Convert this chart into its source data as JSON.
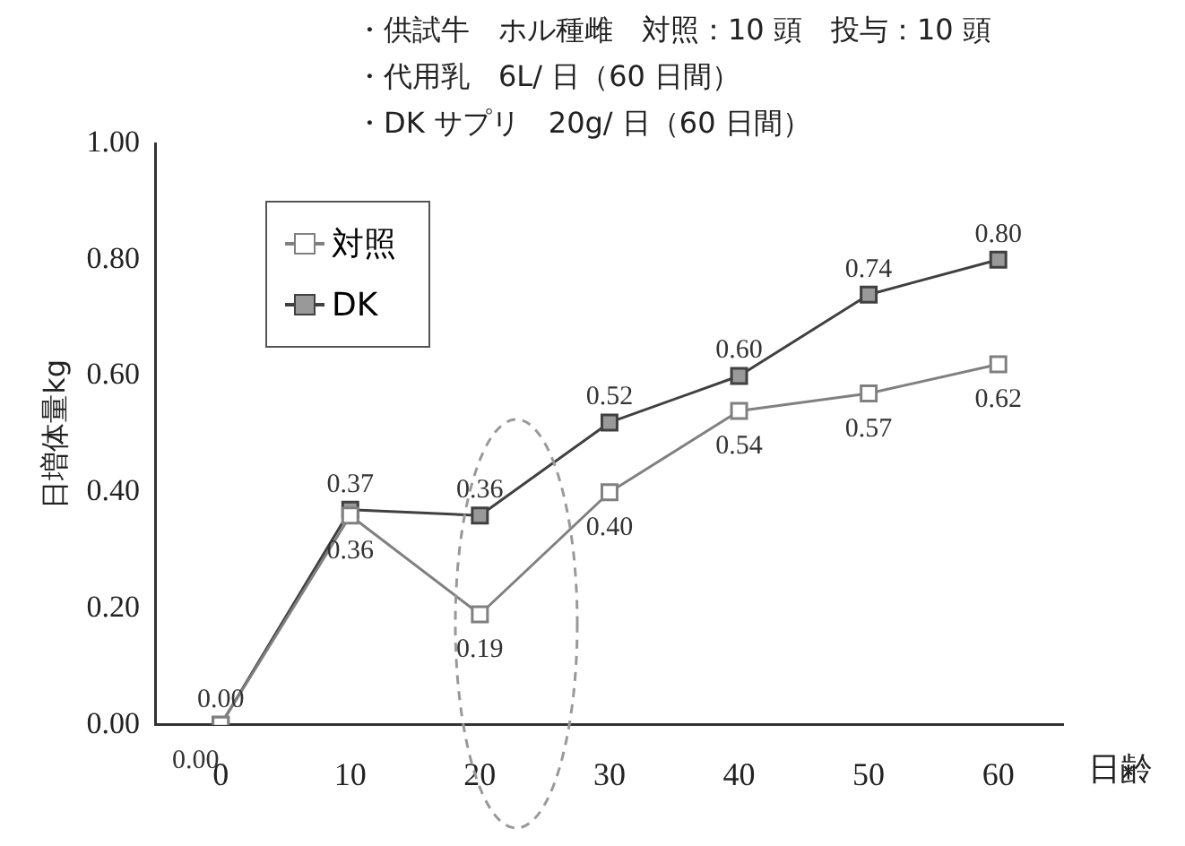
{
  "chart_data": {
    "type": "line",
    "annotations": [
      "・供試牛　ホル種雌　対照：10 頭　投与：10 頭",
      "・代用乳　6L/ 日（60 日間）",
      "・DK サプリ　20g/ 日（60 日間）"
    ],
    "xlabel": "日齢",
    "ylabel": "日増体量kg",
    "categories": [
      "0",
      "10",
      "20",
      "30",
      "40",
      "50",
      "60"
    ],
    "series": [
      {
        "name": "対照",
        "color": "#808080",
        "values": [
          0.0,
          0.36,
          0.19,
          0.4,
          0.54,
          0.57,
          0.62
        ],
        "value_labels": [
          "0.00",
          "0.36",
          "0.19",
          "0.40",
          "0.54",
          "0.57",
          "0.62"
        ]
      },
      {
        "name": "DK",
        "color": "#404040",
        "values": [
          0.0,
          0.37,
          0.36,
          0.52,
          0.6,
          0.74,
          0.8
        ],
        "value_labels": [
          "0.00",
          "0.37",
          "0.36",
          "0.52",
          "0.60",
          "0.74",
          "0.80"
        ]
      }
    ],
    "ylim": [
      0,
      1
    ],
    "yticks": [
      {
        "value": 0,
        "label": "0.00"
      },
      {
        "value": 0.2,
        "label": "0.20"
      },
      {
        "value": 0.4,
        "label": "0.40"
      },
      {
        "value": 0.6,
        "label": "0.60"
      },
      {
        "value": 0.8,
        "label": "0.80"
      },
      {
        "value": 1,
        "label": "1.00"
      }
    ],
    "legend": "top left",
    "marker": "square",
    "grid": false
  }
}
